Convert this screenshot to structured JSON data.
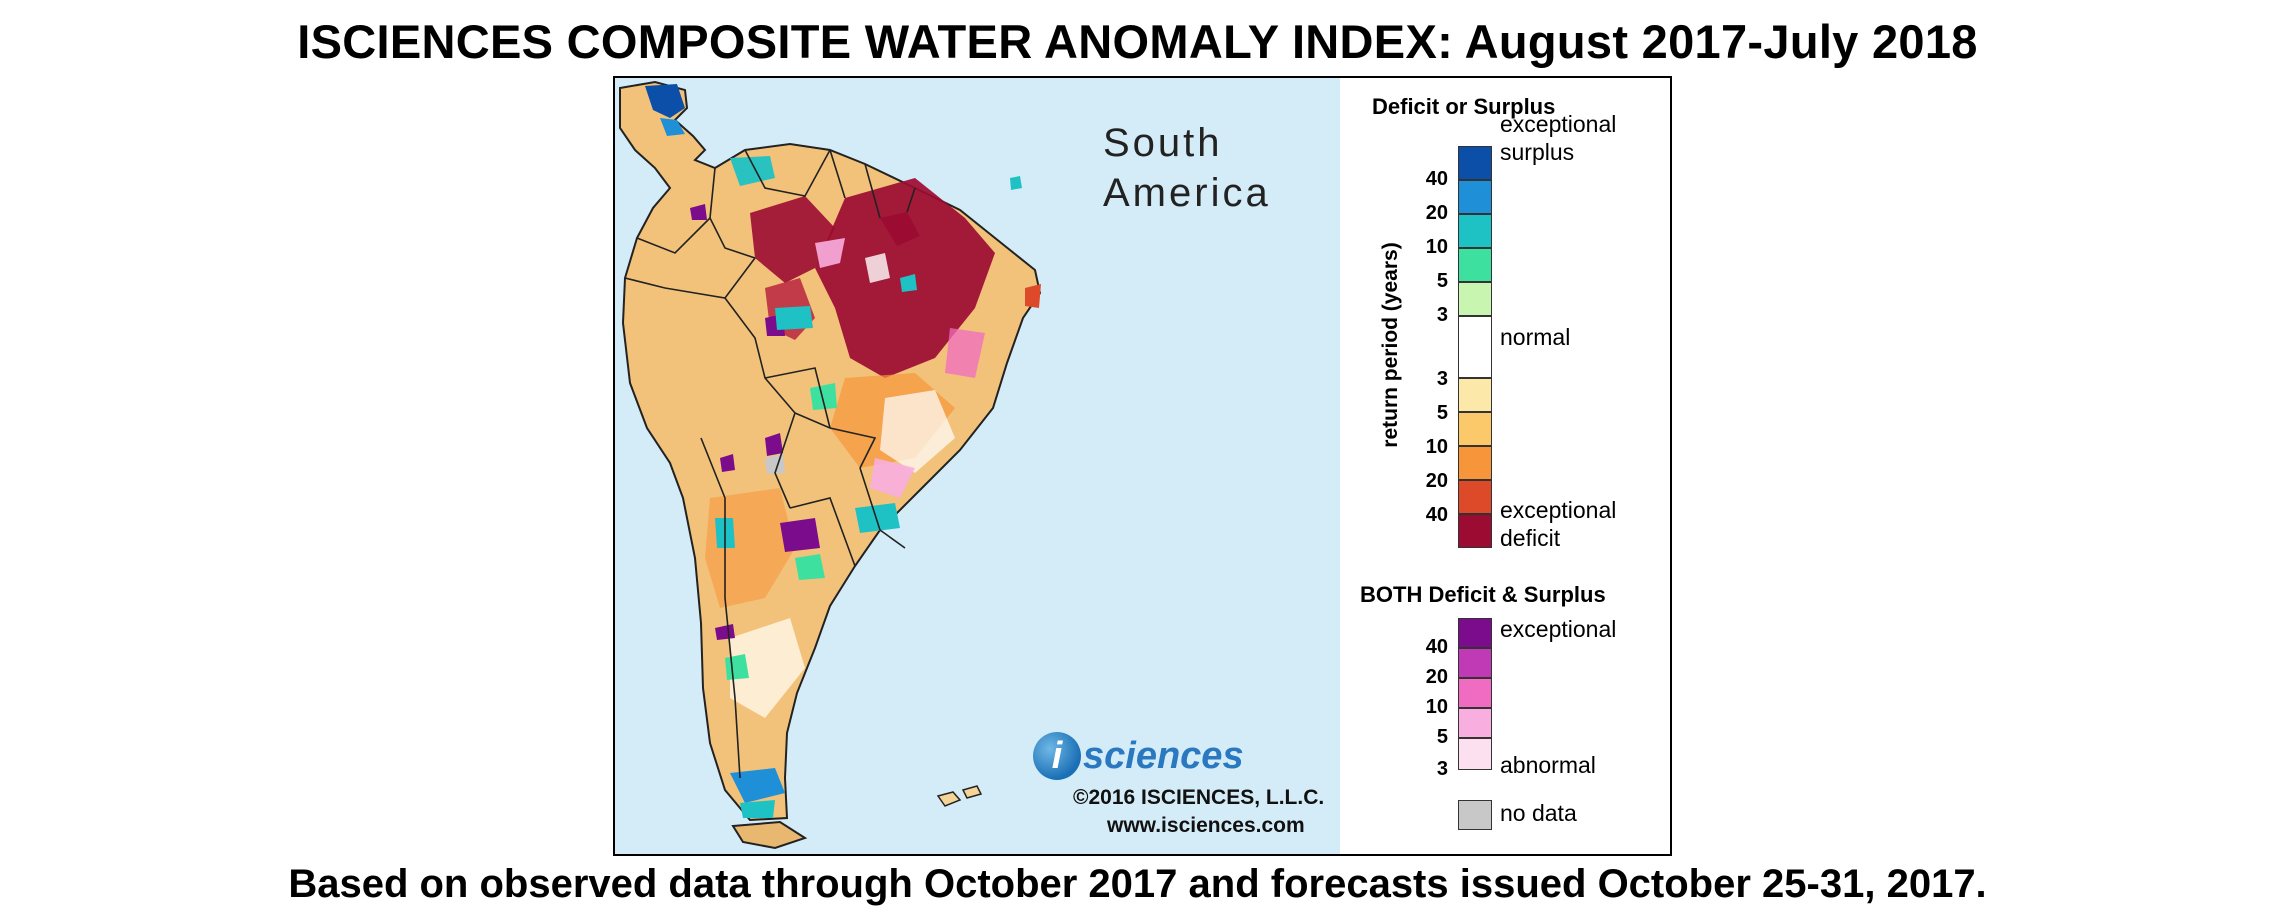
{
  "title": "ISCIENCES COMPOSITE WATER ANOMALY INDEX: August 2017-July 2018",
  "footer": "Based on observed data through October 2017 and forecasts issued October 25-31, 2017.",
  "map": {
    "region_label": "South\nAmerica",
    "logo_i": "i",
    "logo_text": "sciences",
    "copyright": "©2016 ISCIENCES, L.L.C.",
    "website": "www.isciences.com"
  },
  "legend": {
    "section1_title": "Deficit or Surplus",
    "axis_label": "return period (years)",
    "surplus_ticks": [
      "40",
      "20",
      "10",
      "5",
      "3"
    ],
    "deficit_ticks": [
      "3",
      "5",
      "10",
      "20",
      "40"
    ],
    "exceptional_surplus": "exceptional\nsurplus",
    "normal": "normal",
    "exceptional_deficit": "exceptional\ndeficit",
    "section2_title": "BOTH Deficit & Surplus",
    "both_ticks": [
      "40",
      "20",
      "10",
      "5",
      "3"
    ],
    "both_exceptional": "exceptional",
    "both_abnormal": "abnormal",
    "no_data": "no data",
    "colors": {
      "surplus": [
        "#0b4fa8",
        "#1f8fd8",
        "#1ec2c4",
        "#3ee0a0",
        "#c8f5b0"
      ],
      "normal": "#ffffff",
      "deficit": [
        "#fce8a8",
        "#fbc86a",
        "#f7953a",
        "#dd4a2a",
        "#9c0c32"
      ],
      "both": [
        "#7b0c8c",
        "#c13ab5",
        "#f06cc2",
        "#f9aee0",
        "#fde0f0"
      ],
      "no_data": "#c8c8c8",
      "ocean": "#d4ecf7"
    }
  }
}
